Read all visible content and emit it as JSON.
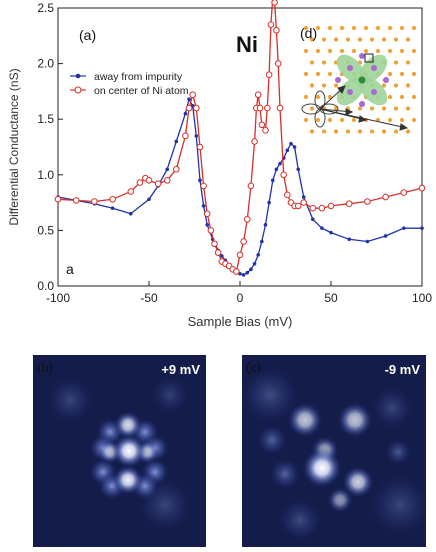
{
  "chart_data": {
    "type": "line",
    "panel_label": "(a)",
    "corner_label": "a",
    "element_label": "Ni",
    "xlabel": "Sample Bias (mV)",
    "ylabel": "Differential Conductance (nS)",
    "xlim": [
      -100,
      100
    ],
    "ylim": [
      0.0,
      2.5
    ],
    "x_ticks": [
      -100,
      -50,
      0,
      50,
      100
    ],
    "y_ticks": [
      0.0,
      0.5,
      1.0,
      1.5,
      2.0,
      2.5
    ],
    "x_tick_labels": [
      "-100",
      "-50",
      "0",
      "50",
      "100"
    ],
    "y_tick_labels": [
      "0.0",
      "0.5",
      "1.0",
      "1.5",
      "2.0",
      "2.5"
    ],
    "legend_position": "upper-left",
    "series": [
      {
        "name": "away from impurity",
        "color": "#2233aa",
        "marker": "filled-dot",
        "x": [
          -100,
          -90,
          -80,
          -70,
          -60,
          -50,
          -45,
          -40,
          -35,
          -30,
          -28,
          -26,
          -24,
          -22,
          -20,
          -18,
          -15,
          -12,
          -10,
          -8,
          -6,
          -4,
          -2,
          0,
          2,
          4,
          6,
          8,
          10,
          12,
          14,
          16,
          18,
          20,
          22,
          24,
          26,
          28,
          30,
          32,
          35,
          40,
          45,
          50,
          60,
          70,
          80,
          90,
          100
        ],
        "y": [
          0.8,
          0.77,
          0.74,
          0.7,
          0.65,
          0.78,
          0.9,
          1.05,
          1.3,
          1.55,
          1.68,
          1.62,
          1.35,
          0.95,
          0.72,
          0.55,
          0.42,
          0.32,
          0.27,
          0.23,
          0.19,
          0.15,
          0.12,
          0.11,
          0.1,
          0.12,
          0.15,
          0.2,
          0.28,
          0.4,
          0.55,
          0.75,
          0.95,
          1.05,
          1.1,
          1.15,
          1.22,
          1.28,
          1.25,
          1.05,
          0.8,
          0.6,
          0.52,
          0.48,
          0.42,
          0.4,
          0.45,
          0.52,
          0.52
        ]
      },
      {
        "name": "on center of Ni atom",
        "color": "#d8302a",
        "marker": "open-circle",
        "x": [
          -100,
          -90,
          -80,
          -70,
          -60,
          -55,
          -52,
          -50,
          -45,
          -40,
          -35,
          -30,
          -28,
          -26,
          -24,
          -22,
          -20,
          -18,
          -16,
          -14,
          -12,
          -10,
          -8,
          -6,
          -4,
          -2,
          0,
          2,
          4,
          6,
          8,
          9,
          10,
          11,
          12,
          14,
          15,
          16,
          17,
          18,
          19,
          20,
          21,
          22,
          24,
          26,
          28,
          30,
          32,
          35,
          40,
          45,
          50,
          60,
          70,
          80,
          90,
          100
        ],
        "y": [
          0.78,
          0.77,
          0.76,
          0.78,
          0.85,
          0.93,
          0.97,
          0.95,
          0.92,
          0.95,
          1.05,
          1.35,
          1.6,
          1.72,
          1.6,
          1.25,
          0.9,
          0.65,
          0.5,
          0.38,
          0.3,
          0.22,
          0.2,
          0.18,
          0.15,
          0.13,
          0.28,
          0.4,
          0.6,
          0.9,
          1.3,
          1.6,
          1.72,
          1.6,
          1.45,
          1.4,
          1.6,
          1.9,
          2.35,
          2.6,
          2.55,
          2.3,
          2.0,
          1.6,
          1.0,
          0.82,
          0.75,
          0.72,
          0.72,
          0.75,
          0.7,
          0.7,
          0.72,
          0.74,
          0.76,
          0.8,
          0.84,
          0.88
        ]
      }
    ]
  },
  "inset": {
    "label": "(d)"
  },
  "maps": [
    {
      "label": "(b)",
      "bias": "+9 mV"
    },
    {
      "label": "(c)",
      "bias": "-9 mV"
    }
  ]
}
